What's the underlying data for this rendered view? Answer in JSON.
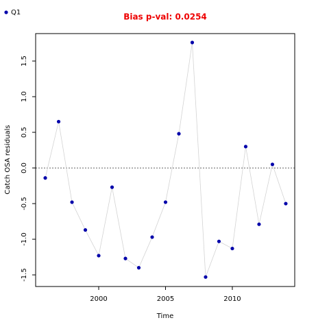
{
  "chart_data": {
    "type": "line",
    "title": "Bias p-val: 0.0254",
    "xlabel": "Time",
    "ylabel": "Catch OSA residuals",
    "x": [
      1996,
      1997,
      1998,
      1999,
      2000,
      2001,
      2002,
      2003,
      2004,
      2005,
      2006,
      2007,
      2008,
      2009,
      2010,
      2011,
      2012,
      2013,
      2014
    ],
    "series": [
      {
        "name": "Q1",
        "color": "#0000aa",
        "line_color": "#d3d3d3",
        "values": [
          -0.14,
          0.65,
          -0.48,
          -0.87,
          -1.23,
          -0.27,
          -1.27,
          -1.4,
          -0.97,
          -0.48,
          0.48,
          1.76,
          -1.53,
          -1.03,
          -1.13,
          0.3,
          -0.79,
          0.05,
          -0.5
        ]
      }
    ],
    "xlim": [
      1995.28,
      2014.67
    ],
    "xticks": [
      2000,
      2005,
      2010
    ],
    "ylim": [
      -1.663,
      1.885
    ],
    "yticks": [
      -1.5,
      {
        "value": -1.0,
        "label": "-1.0"
      },
      -0.5,
      {
        "value": 0.0,
        "label": "0.0"
      },
      0.5,
      {
        "value": 1.0,
        "label": "1.0"
      },
      1.5
    ],
    "reference_line": 0,
    "legend": "top-left"
  }
}
